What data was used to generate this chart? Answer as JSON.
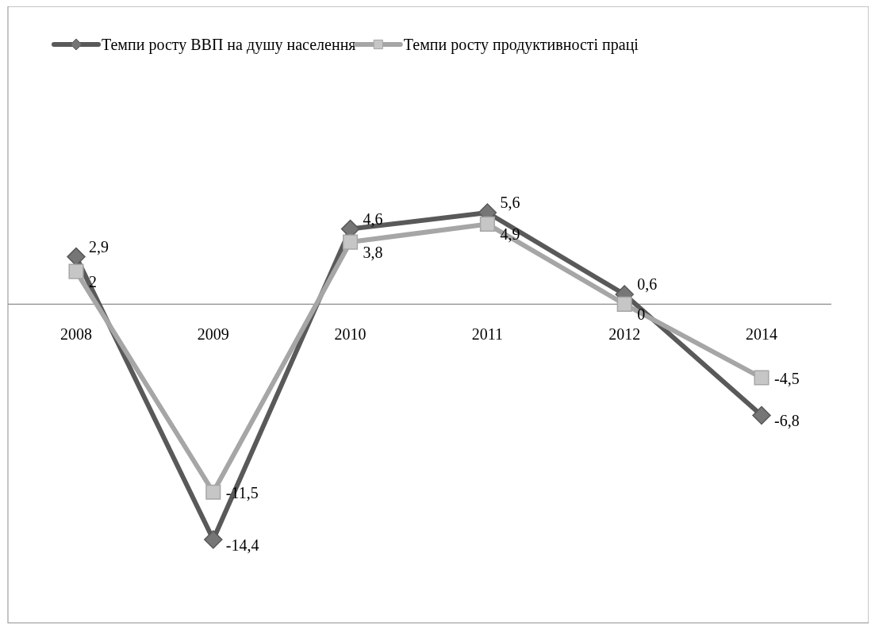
{
  "chart_data": {
    "type": "line",
    "categories": [
      "2008",
      "2009",
      "2010",
      "2011",
      "2012",
      "2014"
    ],
    "legend": "top",
    "series": [
      {
        "name": "Темпи росту ВВП на душу населення",
        "color": "#595959",
        "marker": "diamond",
        "values": [
          2.9,
          -14.4,
          4.6,
          5.6,
          0.6,
          -6.8
        ],
        "value_labels": [
          "2,9",
          "-14,4",
          "4,6",
          "5,6",
          "0,6",
          "-6,8"
        ]
      },
      {
        "name": "Темпи росту продуктивності праці",
        "color": "#a6a6a6",
        "marker": "square",
        "values": [
          2,
          -11.5,
          3.8,
          4.9,
          0,
          -4.5
        ],
        "value_labels": [
          "2",
          "-11,5",
          "3,8",
          "4,9",
          "0",
          "-4,5"
        ]
      }
    ]
  }
}
